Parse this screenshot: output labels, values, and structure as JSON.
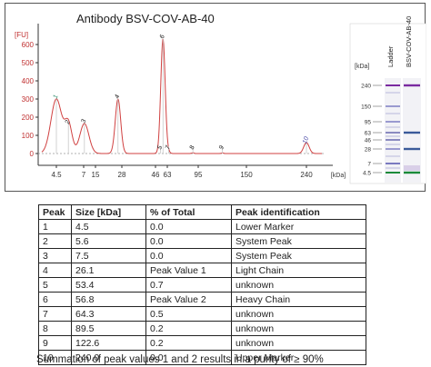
{
  "chart_data": [
    {
      "type": "line",
      "title": "Antibody BSV-COV-AB-40",
      "ylabel": "[FU]",
      "xlabel": "[kDa]",
      "y_ticks": [
        0,
        100,
        200,
        300,
        400,
        500,
        600
      ],
      "ylim": [
        -30,
        700
      ],
      "x_ticks": [
        "4.5",
        "7",
        "15",
        "28",
        "46",
        "63",
        "95",
        "150",
        "240"
      ],
      "grid": false,
      "line_color": "#d04040",
      "peaks": [
        {
          "label": "1",
          "size_kda": 4.5,
          "height_fu": 300
        },
        {
          "label": "2",
          "size_kda": 5.6,
          "height_fu": 160
        },
        {
          "label": "3",
          "size_kda": 7.5,
          "height_fu": 165
        },
        {
          "label": "4",
          "size_kda": 26.1,
          "height_fu": 300
        },
        {
          "label": "5",
          "size_kda": 53.4,
          "height_fu": 10
        },
        {
          "label": "6",
          "size_kda": 56.8,
          "height_fu": 630
        },
        {
          "label": "7",
          "size_kda": 64.3,
          "height_fu": 8
        },
        {
          "label": "8",
          "size_kda": 89.5,
          "height_fu": 4
        },
        {
          "label": "9",
          "size_kda": 122.6,
          "height_fu": 3
        },
        {
          "label": "10",
          "size_kda": 240.0,
          "height_fu": 60
        }
      ]
    },
    {
      "type": "gel",
      "ylabel": "[kDa]",
      "lanes": [
        "Ladder",
        "BSV-COV-AB-40"
      ],
      "markers": [
        "240",
        "150",
        "95",
        "63",
        "46",
        "28",
        "7",
        "4.5"
      ],
      "sample_bands": [
        "240",
        "63",
        "28",
        "4.5"
      ]
    }
  ],
  "table": {
    "headers": [
      "Peak",
      "Size [kDa]",
      "% of Total",
      "Peak identification"
    ],
    "rows": [
      [
        "1",
        "4.5",
        "0.0",
        "Lower Marker"
      ],
      [
        "2",
        "5.6",
        "0.0",
        "System Peak"
      ],
      [
        "3",
        "7.5",
        "0.0",
        "System Peak"
      ],
      [
        "4",
        "26.1",
        "Peak Value 1",
        "Light Chain"
      ],
      [
        "5",
        "53.4",
        "0.7",
        "unknown"
      ],
      [
        "6",
        "56.8",
        "Peak Value 2",
        "Heavy Chain"
      ],
      [
        "7",
        "64.3",
        "0.5",
        "unknown"
      ],
      [
        "8",
        "89.5",
        "0.2",
        "unknown"
      ],
      [
        "9",
        "122.6",
        "0.2",
        "unknown"
      ],
      [
        "10",
        "240.0",
        "0.0",
        "Upper Marker"
      ]
    ]
  },
  "note": "Summation of peak values 1 and 2 results in a purity of ≥ 90%"
}
